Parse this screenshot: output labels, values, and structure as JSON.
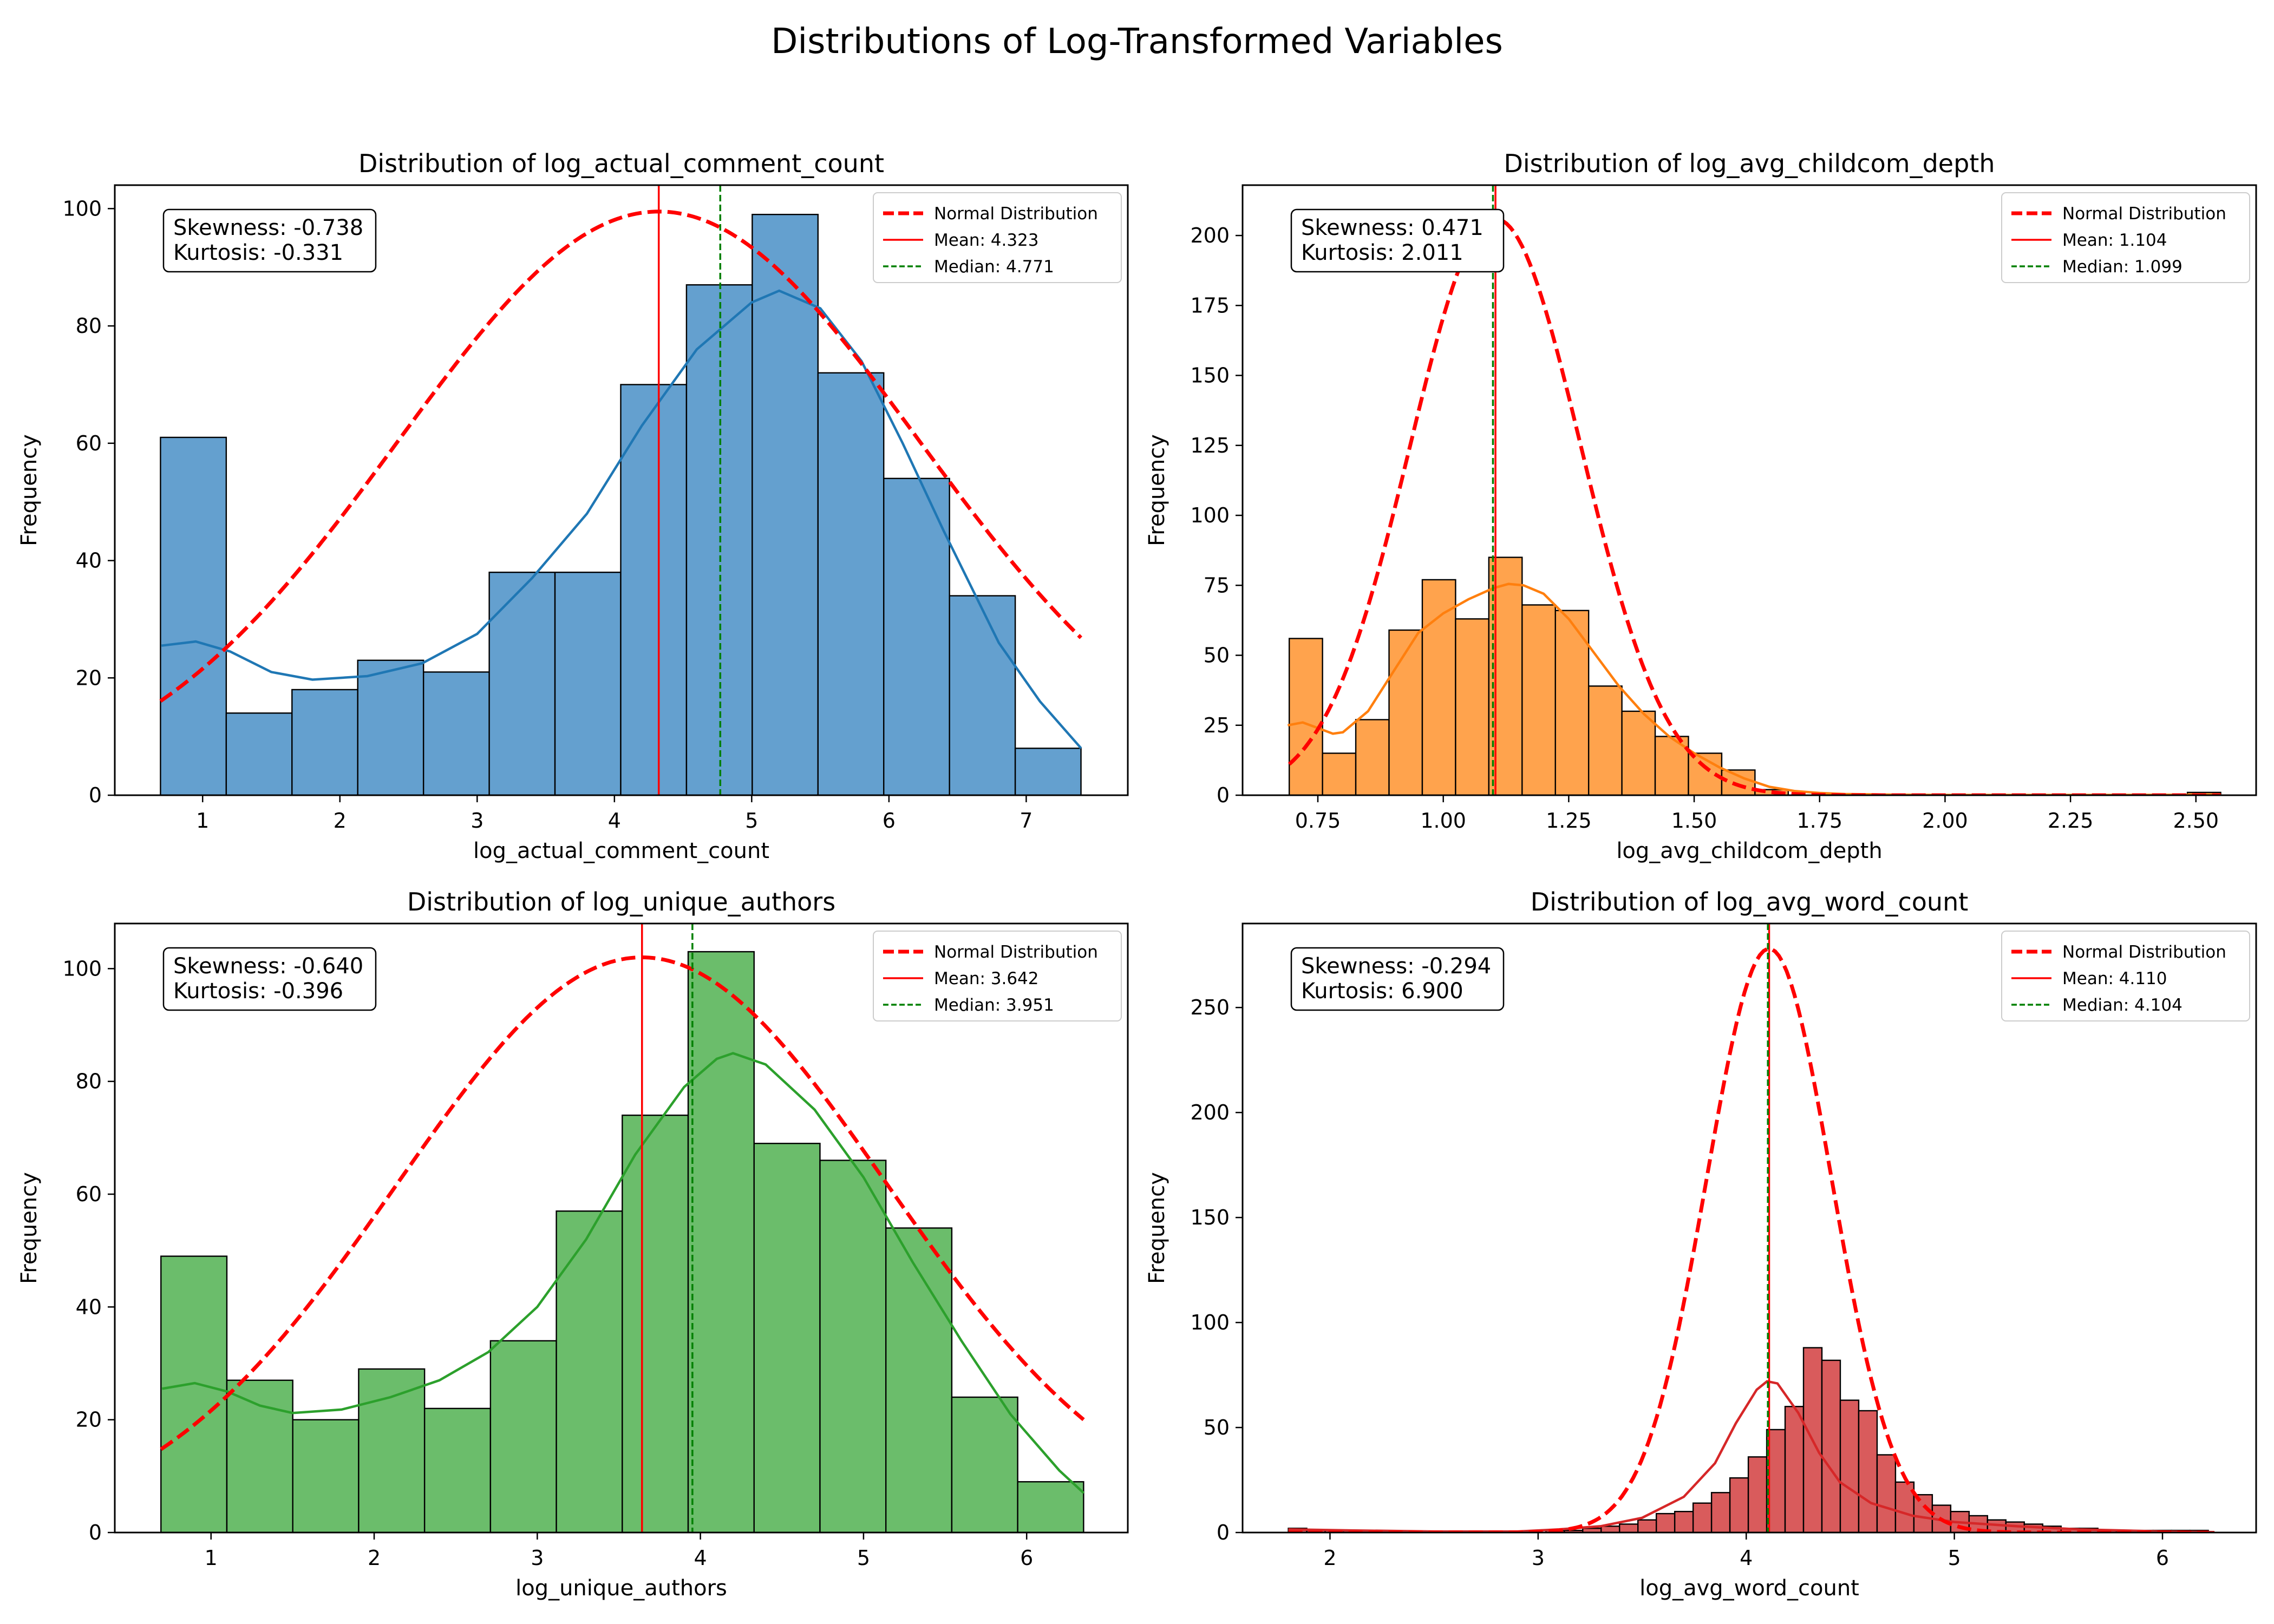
{
  "figure": {
    "title": "Distributions of Log-Transformed Variables"
  },
  "chart_data": [
    {
      "type": "histogram",
      "title": "Distribution of log_actual_comment_count",
      "xlabel": "log_actual_comment_count",
      "ylabel": "Frequency",
      "xlim": [
        0.36,
        7.74
      ],
      "ylim": [
        0,
        104
      ],
      "xticks": [
        1,
        2,
        3,
        4,
        5,
        6,
        7
      ],
      "yticks": [
        0,
        20,
        40,
        60,
        80,
        100
      ],
      "bar_color": "#64a0cf",
      "kde_color": "#1f77b4",
      "bin_edges": [
        0.693,
        1.172,
        1.651,
        2.13,
        2.609,
        3.088,
        3.567,
        4.046,
        4.525,
        5.004,
        5.483,
        5.962,
        6.441,
        6.92,
        7.399
      ],
      "counts": [
        61,
        14,
        18,
        23,
        21,
        38,
        38,
        70,
        87,
        99,
        72,
        54,
        34,
        8
      ],
      "kde": [
        [
          0.7,
          25.5
        ],
        [
          0.95,
          26.2
        ],
        [
          1.2,
          24.5
        ],
        [
          1.5,
          21
        ],
        [
          1.8,
          19.7
        ],
        [
          2.2,
          20.3
        ],
        [
          2.6,
          22.5
        ],
        [
          3.0,
          27.5
        ],
        [
          3.4,
          37
        ],
        [
          3.8,
          48
        ],
        [
          4.2,
          63
        ],
        [
          4.6,
          76
        ],
        [
          5.0,
          84
        ],
        [
          5.2,
          86
        ],
        [
          5.5,
          83
        ],
        [
          5.8,
          74
        ],
        [
          6.1,
          60
        ],
        [
          6.4,
          45
        ],
        [
          6.8,
          26
        ],
        [
          7.1,
          16
        ],
        [
          7.4,
          8
        ]
      ],
      "normal": {
        "mean": 4.323,
        "peak": 99.5,
        "sd": 1.9
      },
      "mean": 4.323,
      "median": 4.771,
      "stats_text": [
        "Skewness: -0.738",
        "Kurtosis: -0.331"
      ],
      "legend": [
        "Normal Distribution",
        "Mean: 4.323",
        "Median: 4.771"
      ]
    },
    {
      "type": "histogram",
      "title": "Distribution of log_avg_childcom_depth",
      "xlabel": "log_avg_childcom_depth",
      "ylabel": "Frequency",
      "xlim": [
        0.6,
        2.62
      ],
      "ylim": [
        0,
        218
      ],
      "xticks": [
        0.75,
        1.0,
        1.25,
        1.5,
        1.75,
        2.0,
        2.25,
        2.5
      ],
      "xtick_labels": [
        "0.75",
        "1.00",
        "1.25",
        "1.50",
        "1.75",
        "2.00",
        "2.25",
        "2.50"
      ],
      "yticks": [
        0,
        25,
        50,
        75,
        100,
        125,
        150,
        175,
        200
      ],
      "bar_color": "#ffa34d",
      "kde_color": "#ff7f0e",
      "bin_edges": [
        0.693,
        0.7593,
        0.8256,
        0.8919,
        0.9582,
        1.0245,
        1.0908,
        1.1571,
        1.2234,
        1.2897,
        1.356,
        1.4223,
        1.4886,
        1.5549,
        1.6212,
        1.6875,
        1.7538,
        1.8201,
        1.8864,
        1.9527,
        2.019,
        2.0853,
        2.1516,
        2.2179,
        2.2842,
        2.3505,
        2.4168,
        2.4831,
        2.5494
      ],
      "counts": [
        56,
        15,
        27,
        59,
        77,
        63,
        85,
        68,
        66,
        39,
        30,
        21,
        15,
        9,
        2,
        0,
        0,
        0,
        0,
        0,
        0,
        0,
        0,
        0,
        0,
        0,
        0,
        1
      ],
      "kde": [
        [
          0.69,
          25
        ],
        [
          0.72,
          26
        ],
        [
          0.75,
          24
        ],
        [
          0.78,
          22
        ],
        [
          0.8,
          22.5
        ],
        [
          0.85,
          30
        ],
        [
          0.9,
          44
        ],
        [
          0.95,
          58
        ],
        [
          1.0,
          65
        ],
        [
          1.05,
          70
        ],
        [
          1.1,
          74
        ],
        [
          1.13,
          75.5
        ],
        [
          1.16,
          75
        ],
        [
          1.2,
          72
        ],
        [
          1.25,
          63
        ],
        [
          1.3,
          51
        ],
        [
          1.35,
          39
        ],
        [
          1.4,
          29
        ],
        [
          1.45,
          21
        ],
        [
          1.5,
          15
        ],
        [
          1.55,
          10
        ],
        [
          1.6,
          6
        ],
        [
          1.65,
          3
        ],
        [
          1.7,
          1.5
        ],
        [
          1.75,
          0.8
        ],
        [
          1.8,
          0.4
        ],
        [
          1.9,
          0.2
        ],
        [
          2.0,
          0.1
        ],
        [
          2.3,
          0.1
        ],
        [
          2.55,
          0.2
        ]
      ],
      "normal": {
        "mean": 1.104,
        "peak": 206,
        "sd": 0.17
      },
      "mean": 1.104,
      "median": 1.099,
      "stats_text": [
        "Skewness: 0.471",
        "Kurtosis: 2.011"
      ],
      "legend": [
        "Normal Distribution",
        "Mean: 1.104",
        "Median: 1.099"
      ]
    },
    {
      "type": "histogram",
      "title": "Distribution of log_unique_authors",
      "xlabel": "log_unique_authors",
      "ylabel": "Frequency",
      "xlim": [
        0.41,
        6.62
      ],
      "ylim": [
        0,
        108
      ],
      "xticks": [
        1,
        2,
        3,
        4,
        5,
        6
      ],
      "yticks": [
        0,
        20,
        40,
        60,
        80,
        100
      ],
      "bar_color": "#6bbd6b",
      "kde_color": "#2ca02c",
      "bin_edges": [
        0.693,
        1.097,
        1.501,
        1.905,
        2.309,
        2.713,
        3.117,
        3.521,
        3.925,
        4.329,
        4.733,
        5.137,
        5.541,
        5.945,
        6.349
      ],
      "counts": [
        49,
        27,
        20,
        29,
        22,
        34,
        57,
        74,
        103,
        69,
        66,
        54,
        24,
        9
      ],
      "kde": [
        [
          0.7,
          25.5
        ],
        [
          0.9,
          26.5
        ],
        [
          1.1,
          25
        ],
        [
          1.3,
          22.5
        ],
        [
          1.5,
          21.2
        ],
        [
          1.8,
          21.8
        ],
        [
          2.1,
          24
        ],
        [
          2.4,
          27
        ],
        [
          2.7,
          32
        ],
        [
          3.0,
          40
        ],
        [
          3.3,
          52
        ],
        [
          3.6,
          67
        ],
        [
          3.9,
          79
        ],
        [
          4.1,
          84
        ],
        [
          4.2,
          85
        ],
        [
          4.4,
          83
        ],
        [
          4.7,
          75
        ],
        [
          5.0,
          63
        ],
        [
          5.3,
          48
        ],
        [
          5.6,
          34
        ],
        [
          5.9,
          21
        ],
        [
          6.2,
          11
        ],
        [
          6.35,
          7
        ]
      ],
      "normal": {
        "mean": 3.642,
        "peak": 102,
        "sd": 1.5
      },
      "mean": 3.642,
      "median": 3.951,
      "stats_text": [
        "Skewness: -0.640",
        "Kurtosis: -0.396"
      ],
      "legend": [
        "Normal Distribution",
        "Mean: 3.642",
        "Median: 3.951"
      ]
    },
    {
      "type": "histogram",
      "title": "Distribution of log_avg_word_count",
      "xlabel": "log_avg_word_count",
      "ylabel": "Frequency",
      "xlim": [
        1.58,
        6.45
      ],
      "ylim": [
        0,
        290
      ],
      "xticks": [
        2,
        3,
        4,
        5,
        6
      ],
      "yticks": [
        0,
        50,
        100,
        150,
        200,
        250
      ],
      "bar_color": "#d95b5c",
      "kde_color": "#d62728",
      "bin_edges": [
        1.8,
        1.8884,
        1.9768,
        2.0652,
        2.1536,
        2.242,
        2.3304,
        2.4188,
        2.5072,
        2.5956,
        2.684,
        2.7724,
        2.8608,
        2.9492,
        3.0376,
        3.126,
        3.2144,
        3.3028,
        3.3912,
        3.4796,
        3.568,
        3.6564,
        3.7448,
        3.8332,
        3.9216,
        4.01,
        4.0984,
        4.1868,
        4.2752,
        4.3636,
        4.452,
        4.5404,
        4.6288,
        4.7172,
        4.8056,
        4.894,
        4.9824,
        5.0708,
        5.1592,
        5.2476,
        5.336,
        5.4244,
        5.5128,
        5.6012,
        5.6896,
        5.778,
        5.8664,
        5.9548,
        6.0432,
        6.1316,
        6.22
      ],
      "counts": [
        2,
        1,
        1,
        1,
        1,
        0,
        0,
        0,
        0,
        0,
        0,
        0,
        0,
        0,
        1,
        1,
        2,
        3,
        4,
        6,
        9,
        10,
        14,
        19,
        26,
        36,
        49,
        60,
        88,
        82,
        63,
        58,
        37,
        24,
        18,
        13,
        10,
        8,
        6,
        5,
        4,
        3,
        2,
        2,
        1,
        1,
        1,
        1,
        1,
        1
      ],
      "kde": [
        [
          1.8,
          1.5
        ],
        [
          2.1,
          1
        ],
        [
          2.5,
          0.5
        ],
        [
          2.9,
          0.5
        ],
        [
          3.1,
          1.5
        ],
        [
          3.3,
          3
        ],
        [
          3.5,
          7
        ],
        [
          3.7,
          17
        ],
        [
          3.85,
          33
        ],
        [
          3.95,
          52
        ],
        [
          4.05,
          68
        ],
        [
          4.1,
          72
        ],
        [
          4.15,
          71
        ],
        [
          4.25,
          57
        ],
        [
          4.35,
          38
        ],
        [
          4.45,
          24
        ],
        [
          4.6,
          14
        ],
        [
          4.8,
          8
        ],
        [
          5.0,
          5
        ],
        [
          5.3,
          3
        ],
        [
          5.6,
          1.5
        ],
        [
          6.0,
          0.5
        ],
        [
          6.25,
          0.2
        ]
      ],
      "normal": {
        "mean": 4.11,
        "peak": 278,
        "sd": 0.3
      },
      "mean": 4.11,
      "median": 4.104,
      "stats_text": [
        "Skewness: -0.294",
        "Kurtosis: 6.900"
      ],
      "legend": [
        "Normal Distribution",
        "Mean: 4.110",
        "Median: 4.104"
      ]
    }
  ]
}
